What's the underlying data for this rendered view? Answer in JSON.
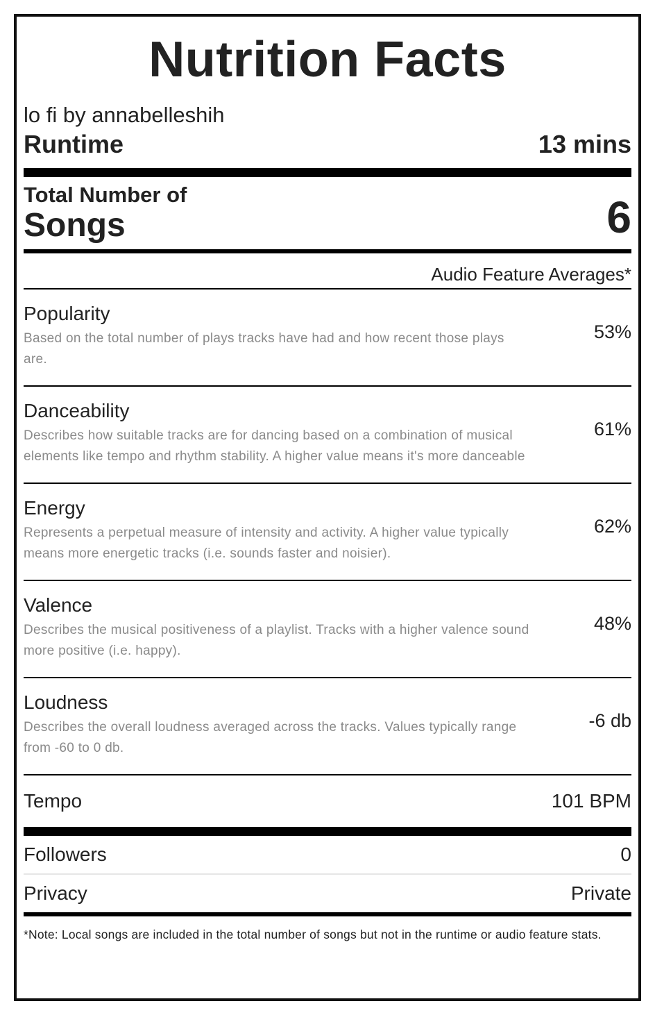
{
  "title": "Nutrition Facts",
  "playlist": "lo fi by annabelleshih",
  "runtime": {
    "label": "Runtime",
    "value": "13 mins"
  },
  "songs": {
    "label_small": "Total Number of",
    "label_big": "Songs",
    "value": "6"
  },
  "averages_header": "Audio Feature Averages*",
  "features": [
    {
      "name": "Popularity",
      "description": "Based on the total number of plays tracks have had and how recent those plays are.",
      "value": "53%"
    },
    {
      "name": "Danceability",
      "description": "Describes how suitable tracks are for dancing based on a combination of musical elements like tempo and rhythm stability. A higher value means it's more danceable",
      "value": "61%"
    },
    {
      "name": "Energy",
      "description": "Represents a perpetual measure of intensity and activity. A higher value typically means more energetic tracks (i.e. sounds faster and noisier).",
      "value": "62%"
    },
    {
      "name": "Valence",
      "description": "Describes the musical positiveness of a playlist. Tracks with a higher valence sound more positive (i.e. happy).",
      "value": "48%"
    },
    {
      "name": "Loudness",
      "description": "Describes the overall loudness averaged across the tracks. Values typically range from -60 to 0 db.",
      "value": "-6 db"
    }
  ],
  "tempo": {
    "label": "Tempo",
    "value": "101 BPM"
  },
  "followers": {
    "label": "Followers",
    "value": "0"
  },
  "privacy": {
    "label": "Privacy",
    "value": "Private"
  },
  "note": "*Note: Local songs are included in the total number of songs but not in the runtime or audio feature stats."
}
